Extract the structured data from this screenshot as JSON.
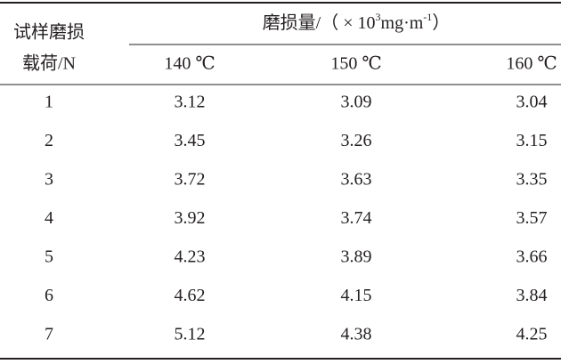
{
  "table": {
    "row_header": [
      "试样磨损",
      "载荷/N"
    ],
    "group_header": [
      "磨损量/（ × 10",
      "3",
      "mg·m",
      "-1",
      "）"
    ],
    "columns": [
      "140 ℃",
      "150 ℃",
      "160 ℃"
    ],
    "rows": [
      [
        "1",
        "3.12",
        "3.09",
        "3.04"
      ],
      [
        "2",
        "3.45",
        "3.26",
        "3.15"
      ],
      [
        "3",
        "3.72",
        "3.63",
        "3.35"
      ],
      [
        "4",
        "3.92",
        "3.74",
        "3.57"
      ],
      [
        "5",
        "4.23",
        "3.89",
        "3.66"
      ],
      [
        "6",
        "4.62",
        "4.15",
        "3.84"
      ],
      [
        "7",
        "5.12",
        "4.38",
        "4.25"
      ]
    ]
  }
}
